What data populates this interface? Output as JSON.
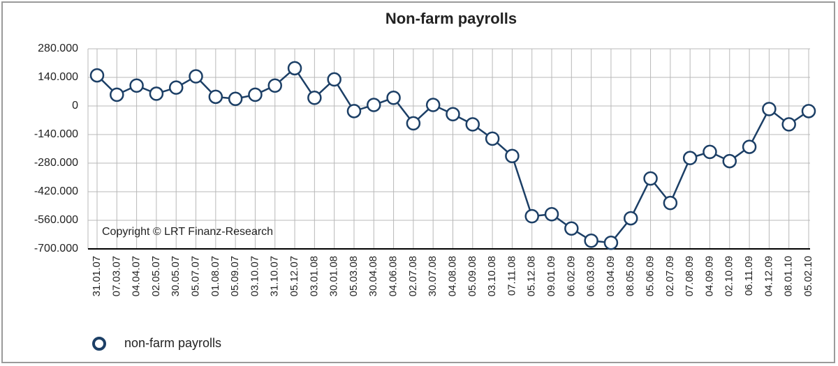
{
  "chart_data": {
    "type": "line",
    "title": "Non-farm payrolls",
    "annotation": "Copyright © LRT Finanz-Research",
    "categories": [
      "31.01.07",
      "07.03.07",
      "04.04.07",
      "02.05.07",
      "30.05.07",
      "05.07.07",
      "01.08.07",
      "05.09.07",
      "03.10.07",
      "31.10.07",
      "05.12.07",
      "03.01.08",
      "30.01.08",
      "05.03.08",
      "30.04.08",
      "04.06.08",
      "02.07.08",
      "30.07.08",
      "04.08.08",
      "05.09.08",
      "03.10.08",
      "07.11.08",
      "05.12.08",
      "09.01.09",
      "06.02.09",
      "06.03.09",
      "03.04.09",
      "08.05.09",
      "05.06.09",
      "02.07.09",
      "07.08.09",
      "04.09.09",
      "02.10.09",
      "06.11.09",
      "04.12.09",
      "08.01.10",
      "05.02.10"
    ],
    "series": [
      {
        "name": "non-farm payrolls",
        "color": "#1c3f66",
        "values": [
          150000,
          55000,
          100000,
          60000,
          90000,
          145000,
          45000,
          35000,
          55000,
          100000,
          185000,
          40000,
          130000,
          -25000,
          5000,
          40000,
          -85000,
          5000,
          -40000,
          -90000,
          -160000,
          -245000,
          -540000,
          -530000,
          -600000,
          -660000,
          -670000,
          -550000,
          -355000,
          -475000,
          -255000,
          -225000,
          -270000,
          -200000,
          -15000,
          -90000,
          -25000
        ]
      }
    ],
    "ylim": [
      -700000,
      280000
    ],
    "yticks": [
      {
        "value": -700000,
        "label": "-700.000"
      },
      {
        "value": -560000,
        "label": "-560.000"
      },
      {
        "value": -420000,
        "label": "-420.000"
      },
      {
        "value": -280000,
        "label": "-280.000"
      },
      {
        "value": -140000,
        "label": "-140.000"
      },
      0,
      {
        "value": 140000,
        "label": "140.000"
      },
      {
        "value": 280000,
        "label": "280.000"
      }
    ],
    "grid": true,
    "legend": "bottom-left"
  }
}
